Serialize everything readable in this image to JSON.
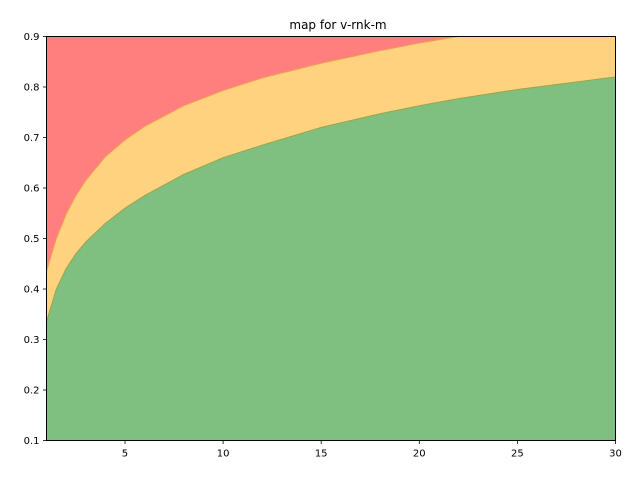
{
  "chart_data": {
    "type": "area",
    "title": "map for v-rnk-m",
    "xlabel": "",
    "ylabel": "",
    "xlim": [
      1,
      30
    ],
    "ylim": [
      0.1,
      0.9
    ],
    "x_ticks": [
      5,
      10,
      15,
      20,
      25,
      30
    ],
    "y_ticks": [
      0.1,
      0.2,
      0.3,
      0.4,
      0.5,
      0.6,
      0.7,
      0.8,
      0.9
    ],
    "grid": false,
    "legend": "none",
    "x": [
      1,
      1.5,
      2,
      2.5,
      3,
      4,
      5,
      6,
      8,
      10,
      12,
      15,
      18,
      20,
      22,
      25,
      28,
      30
    ],
    "series": [
      {
        "role": "green-region-upper-boundary",
        "color": "#7fbf7f",
        "values": [
          0.335,
          0.4,
          0.44,
          0.47,
          0.493,
          0.53,
          0.56,
          0.585,
          0.627,
          0.66,
          0.685,
          0.72,
          0.747,
          0.763,
          0.777,
          0.795,
          0.81,
          0.82
        ]
      },
      {
        "role": "orange-region-upper-boundary",
        "color": "#ffd27f",
        "values": [
          0.435,
          0.5,
          0.548,
          0.585,
          0.615,
          0.662,
          0.695,
          0.722,
          0.763,
          0.793,
          0.818,
          0.847,
          0.872,
          0.887,
          0.9,
          0.9,
          0.9,
          0.9
        ]
      },
      {
        "role": "red-region",
        "color": "#ff7f7f",
        "values": [
          0.9,
          0.9,
          0.9,
          0.9,
          0.9,
          0.9,
          0.9,
          0.9,
          0.9,
          0.9,
          0.9,
          0.9,
          0.9,
          0.9,
          0.9,
          0.9,
          0.9,
          0.9
        ]
      }
    ]
  }
}
